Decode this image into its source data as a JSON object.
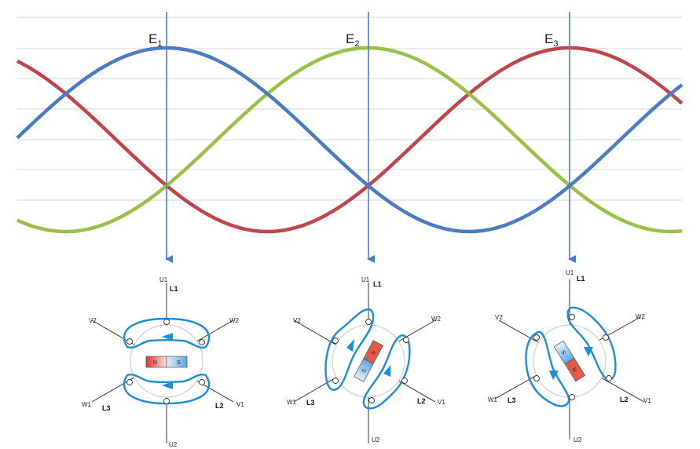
{
  "waveform": {
    "markers": [
      {
        "letter": "E",
        "index": "1"
      },
      {
        "letter": "E",
        "index": "2"
      },
      {
        "letter": "E",
        "index": "3"
      }
    ],
    "colors": {
      "blue": "#4a7cc4",
      "red": "#c0464a",
      "green": "#9bc04a",
      "arrow": "#4a7cc4",
      "grid": "#d6d6d6"
    }
  },
  "motor_diagrams": [
    {
      "terminals": {
        "u1": "U1",
        "u2": "U2",
        "v1": "V1",
        "v2": "V2",
        "w1": "W1",
        "w2": "W2"
      },
      "phases": {
        "l1": "L1",
        "l2": "L2",
        "l3": "L3"
      },
      "magnet": {
        "north": "N",
        "south": "S"
      }
    },
    {
      "terminals": {
        "u1": "U1",
        "u2": "U2",
        "v1": "V1",
        "v2": "V2",
        "w1": "W1",
        "w2": "W2"
      },
      "phases": {
        "l1": "L1",
        "l2": "L2",
        "l3": "L3"
      },
      "magnet": {
        "north": "N",
        "south": "S"
      }
    },
    {
      "terminals": {
        "u1": "U1",
        "u2": "U2",
        "v1": "V1",
        "v2": "V2",
        "w1": "W1",
        "w2": "W2"
      },
      "phases": {
        "l1": "L1",
        "l2": "L2",
        "l3": "L3"
      },
      "magnet": {
        "north": "N",
        "south": "S"
      }
    }
  ]
}
